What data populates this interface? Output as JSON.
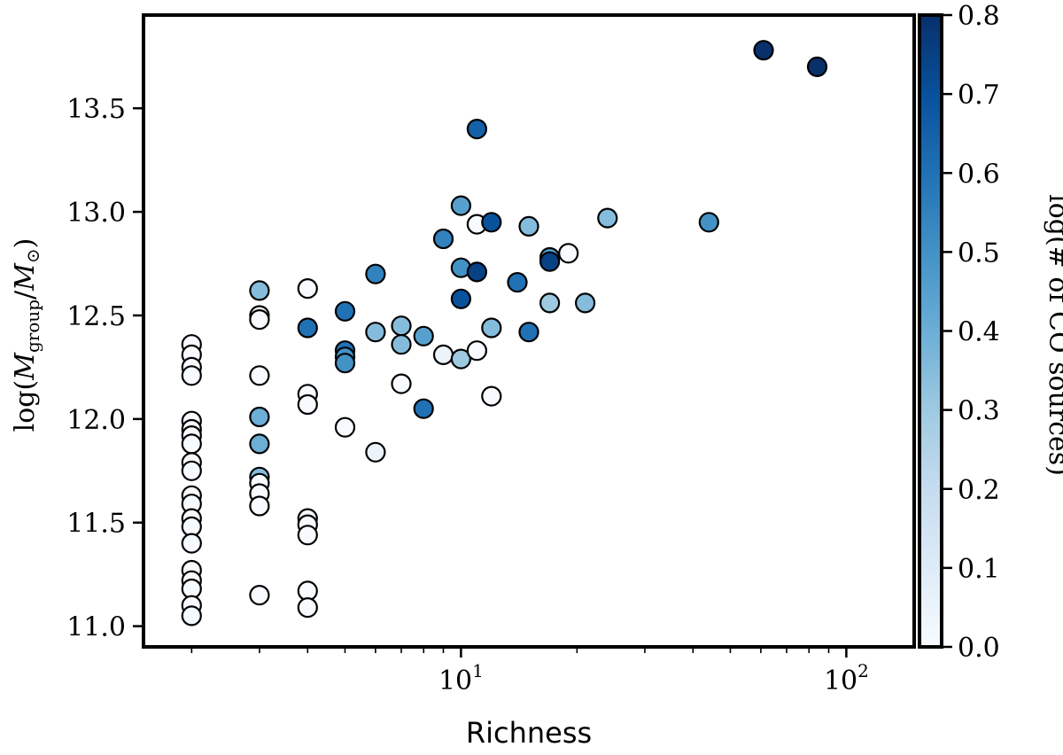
{
  "chart_data": {
    "type": "scatter",
    "title": "",
    "xlabel": "Richness",
    "ylabel": "log(M_group/M_⊙)",
    "ylabel_parts": {
      "prefix": "log(",
      "M1": "M",
      "sub1": "group",
      "slash": "/",
      "M2": "M",
      "sub2": "⊙",
      "suffix": ")"
    },
    "x_scale": "log",
    "xlim": [
      1.5,
      150
    ],
    "ylim": [
      10.9,
      13.95
    ],
    "x_ticks": [
      {
        "value": 10,
        "base": "10",
        "exp": "1"
      },
      {
        "value": 100,
        "base": "10",
        "exp": "2"
      }
    ],
    "y_ticks": [
      {
        "value": 11.0,
        "label": "11.0"
      },
      {
        "value": 11.5,
        "label": "11.5"
      },
      {
        "value": 12.0,
        "label": "12.0"
      },
      {
        "value": 12.5,
        "label": "12.5"
      },
      {
        "value": 13.0,
        "label": "13.0"
      },
      {
        "value": 13.5,
        "label": "13.5"
      }
    ],
    "colorbar": {
      "label": "log(# of CO sources)",
      "range": [
        0.0,
        0.8
      ],
      "colormap": "Blues",
      "colors": [
        "#f7fbff",
        "#deebf7",
        "#c6dbef",
        "#9ecae1",
        "#6baed6",
        "#4292c6",
        "#2171b5",
        "#08519c",
        "#08306b"
      ],
      "ticks": [
        {
          "value": 0.0,
          "label": "0.0"
        },
        {
          "value": 0.1,
          "label": "0.1"
        },
        {
          "value": 0.2,
          "label": "0.2"
        },
        {
          "value": 0.3,
          "label": "0.3"
        },
        {
          "value": 0.4,
          "label": "0.4"
        },
        {
          "value": 0.5,
          "label": "0.5"
        },
        {
          "value": 0.6,
          "label": "0.6"
        },
        {
          "value": 0.7,
          "label": "0.7"
        },
        {
          "value": 0.8,
          "label": "0.8"
        }
      ]
    },
    "points": [
      {
        "x": 2,
        "y": 12.36,
        "c": 0.0
      },
      {
        "x": 2,
        "y": 12.31,
        "c": 0.0
      },
      {
        "x": 2,
        "y": 12.25,
        "c": 0.0
      },
      {
        "x": 2,
        "y": 12.21,
        "c": 0.0
      },
      {
        "x": 2,
        "y": 11.99,
        "c": 0.0
      },
      {
        "x": 2,
        "y": 11.95,
        "c": 0.0
      },
      {
        "x": 2,
        "y": 11.92,
        "c": 0.0
      },
      {
        "x": 2,
        "y": 11.88,
        "c": 0.0
      },
      {
        "x": 2,
        "y": 11.79,
        "c": 0.0
      },
      {
        "x": 2,
        "y": 11.75,
        "c": 0.0
      },
      {
        "x": 2,
        "y": 11.63,
        "c": 0.0
      },
      {
        "x": 2,
        "y": 11.59,
        "c": 0.0
      },
      {
        "x": 2,
        "y": 11.52,
        "c": 0.0
      },
      {
        "x": 2,
        "y": 11.48,
        "c": 0.0
      },
      {
        "x": 2,
        "y": 11.4,
        "c": 0.0
      },
      {
        "x": 2,
        "y": 11.27,
        "c": 0.0
      },
      {
        "x": 2,
        "y": 11.22,
        "c": 0.0
      },
      {
        "x": 2,
        "y": 11.18,
        "c": 0.0
      },
      {
        "x": 2,
        "y": 11.1,
        "c": 0.0
      },
      {
        "x": 2,
        "y": 11.05,
        "c": 0.0
      },
      {
        "x": 3,
        "y": 12.62,
        "c": 0.35
      },
      {
        "x": 3,
        "y": 12.5,
        "c": 0.0
      },
      {
        "x": 3,
        "y": 12.48,
        "c": 0.0
      },
      {
        "x": 3,
        "y": 12.21,
        "c": 0.0
      },
      {
        "x": 3,
        "y": 12.01,
        "c": 0.4
      },
      {
        "x": 3,
        "y": 11.88,
        "c": 0.4
      },
      {
        "x": 3,
        "y": 11.72,
        "c": 0.35
      },
      {
        "x": 3,
        "y": 11.69,
        "c": 0.0
      },
      {
        "x": 3,
        "y": 11.64,
        "c": 0.0
      },
      {
        "x": 3,
        "y": 11.58,
        "c": 0.0
      },
      {
        "x": 3,
        "y": 11.15,
        "c": 0.0
      },
      {
        "x": 4,
        "y": 12.63,
        "c": 0.0
      },
      {
        "x": 4,
        "y": 12.44,
        "c": 0.6
      },
      {
        "x": 4,
        "y": 12.12,
        "c": 0.0
      },
      {
        "x": 4,
        "y": 12.07,
        "c": 0.0
      },
      {
        "x": 4,
        "y": 11.52,
        "c": 0.0
      },
      {
        "x": 4,
        "y": 11.49,
        "c": 0.0
      },
      {
        "x": 4,
        "y": 11.44,
        "c": 0.0
      },
      {
        "x": 4,
        "y": 11.17,
        "c": 0.0
      },
      {
        "x": 4,
        "y": 11.09,
        "c": 0.0
      },
      {
        "x": 5,
        "y": 12.52,
        "c": 0.6
      },
      {
        "x": 5,
        "y": 12.33,
        "c": 0.6
      },
      {
        "x": 5,
        "y": 12.3,
        "c": 0.5
      },
      {
        "x": 5,
        "y": 12.27,
        "c": 0.5
      },
      {
        "x": 5,
        "y": 11.96,
        "c": 0.0
      },
      {
        "x": 6,
        "y": 12.7,
        "c": 0.55
      },
      {
        "x": 6,
        "y": 12.42,
        "c": 0.35
      },
      {
        "x": 6,
        "y": 11.84,
        "c": 0.05
      },
      {
        "x": 7,
        "y": 12.45,
        "c": 0.35
      },
      {
        "x": 7,
        "y": 12.36,
        "c": 0.35
      },
      {
        "x": 7,
        "y": 12.17,
        "c": 0.0
      },
      {
        "x": 8,
        "y": 12.4,
        "c": 0.45
      },
      {
        "x": 8,
        "y": 12.05,
        "c": 0.6
      },
      {
        "x": 9,
        "y": 12.87,
        "c": 0.55
      },
      {
        "x": 9,
        "y": 12.31,
        "c": 0.05
      },
      {
        "x": 10,
        "y": 13.03,
        "c": 0.45
      },
      {
        "x": 10,
        "y": 12.73,
        "c": 0.5
      },
      {
        "x": 10,
        "y": 12.58,
        "c": 0.7
      },
      {
        "x": 10,
        "y": 12.29,
        "c": 0.3
      },
      {
        "x": 11,
        "y": 13.4,
        "c": 0.65
      },
      {
        "x": 11,
        "y": 12.94,
        "c": 0.0
      },
      {
        "x": 11,
        "y": 12.71,
        "c": 0.75
      },
      {
        "x": 11,
        "y": 12.33,
        "c": 0.0
      },
      {
        "x": 12,
        "y": 12.95,
        "c": 0.7
      },
      {
        "x": 12,
        "y": 12.44,
        "c": 0.35
      },
      {
        "x": 12,
        "y": 12.11,
        "c": 0.0
      },
      {
        "x": 14,
        "y": 12.66,
        "c": 0.6
      },
      {
        "x": 15,
        "y": 12.93,
        "c": 0.35
      },
      {
        "x": 15,
        "y": 12.42,
        "c": 0.6
      },
      {
        "x": 17,
        "y": 12.78,
        "c": 0.45
      },
      {
        "x": 17,
        "y": 12.76,
        "c": 0.75
      },
      {
        "x": 17,
        "y": 12.56,
        "c": 0.3
      },
      {
        "x": 19,
        "y": 12.8,
        "c": 0.0
      },
      {
        "x": 21,
        "y": 12.56,
        "c": 0.35
      },
      {
        "x": 24,
        "y": 12.97,
        "c": 0.35
      },
      {
        "x": 44,
        "y": 12.95,
        "c": 0.5
      },
      {
        "x": 61,
        "y": 13.78,
        "c": 0.8
      },
      {
        "x": 84,
        "y": 13.7,
        "c": 0.8
      }
    ]
  }
}
